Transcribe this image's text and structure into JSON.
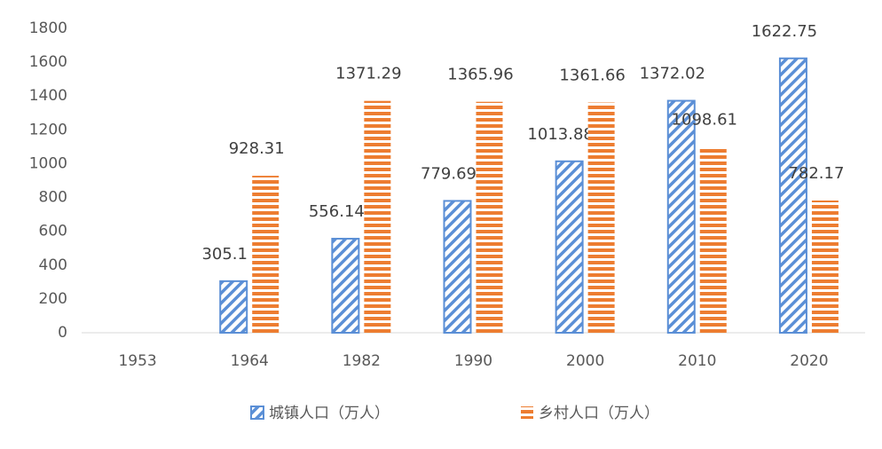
{
  "chart_data": {
    "type": "bar",
    "categories": [
      "1953",
      "1964",
      "1982",
      "1990",
      "2000",
      "2010",
      "2020"
    ],
    "series": [
      {
        "name": "城镇人口（万人）",
        "color": "#5b8fd6",
        "pattern": "diagonal",
        "values": [
          null,
          305.1,
          556.14,
          779.69,
          1013.88,
          1372.02,
          1622.75
        ]
      },
      {
        "name": "乡村人口（万人）",
        "color": "#ed7d31",
        "pattern": "horizontal",
        "values": [
          null,
          928.31,
          1371.29,
          1365.96,
          1361.66,
          1098.61,
          782.17
        ]
      }
    ],
    "ylim": [
      0,
      1800
    ],
    "yticks": [
      0,
      200,
      400,
      600,
      800,
      1000,
      1200,
      1400,
      1600,
      1800
    ],
    "grid": false,
    "legend": "bottom"
  }
}
